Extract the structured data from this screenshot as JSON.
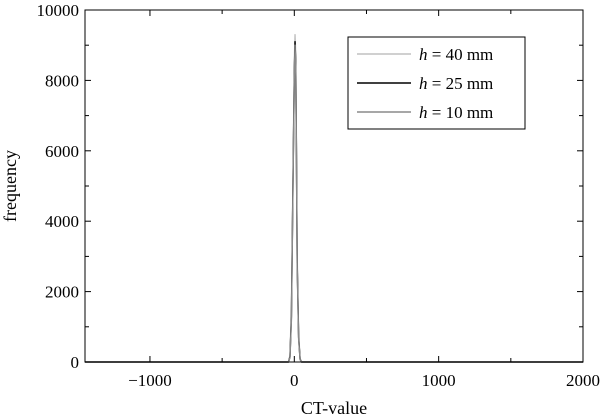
{
  "chart_data": {
    "type": "line",
    "title": "",
    "xlabel": "CT-value",
    "ylabel": "frequency",
    "xlim": [
      -1450,
      2000
    ],
    "ylim": [
      0,
      10000
    ],
    "xticks": [
      -1000,
      0,
      1000,
      2000
    ],
    "xtick_labels": [
      "−1000",
      "0",
      "1000",
      "2000"
    ],
    "yticks": [
      0,
      2000,
      4000,
      6000,
      8000,
      10000
    ],
    "ytick_labels": [
      "0",
      "2000",
      "4000",
      "6000",
      "8000",
      "10000"
    ],
    "grid": false,
    "legend_position": "top-right",
    "legend_prefix": "h",
    "series": [
      {
        "name": " = 40 mm",
        "color": "#c0c0c0",
        "x": [
          -1450,
          -40,
          -30,
          -20,
          -10,
          0,
          5,
          10,
          15,
          20,
          30,
          40,
          50,
          2000
        ],
        "y": [
          0,
          0,
          200,
          1500,
          5000,
          8500,
          9300,
          8700,
          6000,
          3000,
          800,
          100,
          0,
          0
        ]
      },
      {
        "name": " = 25 mm",
        "color": "#000000",
        "x": [
          -1450,
          -40,
          -30,
          -20,
          -10,
          0,
          5,
          10,
          15,
          20,
          30,
          40,
          50,
          2000
        ],
        "y": [
          0,
          0,
          150,
          1300,
          4800,
          8200,
          9100,
          8500,
          5800,
          2800,
          700,
          80,
          0,
          0
        ]
      },
      {
        "name": " = 10 mm",
        "color": "#8a8a8a",
        "x": [
          -1450,
          -40,
          -30,
          -20,
          -10,
          0,
          5,
          10,
          15,
          20,
          30,
          40,
          50,
          2000
        ],
        "y": [
          0,
          0,
          120,
          1200,
          4700,
          8100,
          9000,
          8400,
          5700,
          2700,
          650,
          70,
          0,
          0
        ]
      }
    ]
  }
}
